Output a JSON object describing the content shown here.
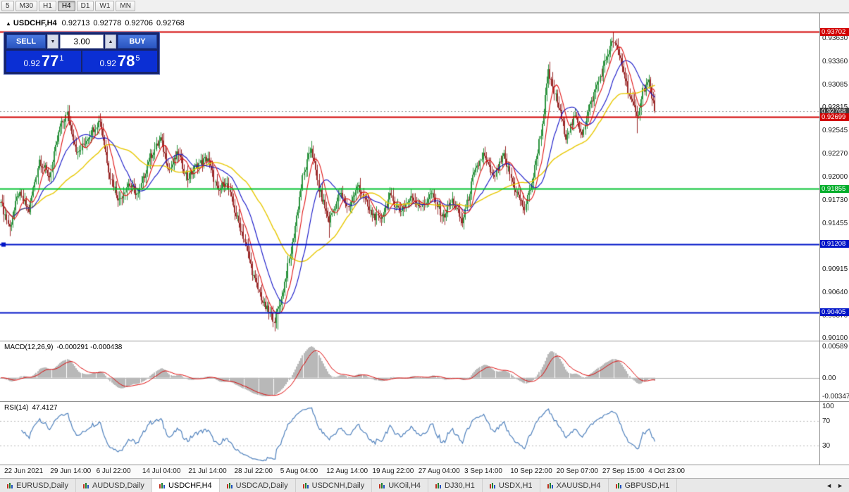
{
  "toolbar": {
    "periods": [
      {
        "label": "5",
        "active": false
      },
      {
        "label": "M30",
        "active": false
      },
      {
        "label": "H1",
        "active": false
      },
      {
        "label": "H4",
        "active": true
      },
      {
        "label": "D1",
        "active": false
      },
      {
        "label": "W1",
        "active": false
      },
      {
        "label": "MN",
        "active": false
      }
    ]
  },
  "chart": {
    "collapse_icon": "▲",
    "symbol_title": "USDCHF,H4",
    "ohlc": {
      "open": "0.92713",
      "high": "0.92778",
      "low": "0.92706",
      "close": "0.92768"
    },
    "price_scale": {
      "ticks": [
        "0.93630",
        "0.93360",
        "0.93085",
        "0.92815",
        "0.92545",
        "0.92270",
        "0.92000",
        "0.91730",
        "0.91455",
        "0.91185",
        "0.90915",
        "0.90640",
        "0.90370",
        "0.90100"
      ]
    },
    "hlines": [
      {
        "price": 0.93702,
        "tag": "0.93702",
        "color": "#d20000",
        "tag_bg": "#d20000",
        "width": 2,
        "style": "solid",
        "handle": false
      },
      {
        "price": 0.92768,
        "tag": "0.92768",
        "color": "#909090",
        "tag_bg": "#3d3d3d",
        "width": 1,
        "style": "dot",
        "handle": false
      },
      {
        "price": 0.92699,
        "tag": "0.92699",
        "color": "#d20000",
        "tag_bg": "#d20000",
        "width": 2,
        "style": "solid",
        "handle": false
      },
      {
        "price": 0.91855,
        "tag": "0.91855",
        "color": "#00c22e",
        "tag_bg": "#00ad29",
        "width": 2,
        "style": "solid",
        "handle": false
      },
      {
        "price": 0.91208,
        "tag": "0.91208",
        "color": "#0014c8",
        "tag_bg": "#0014c8",
        "width": 2,
        "style": "solid",
        "handle": true
      },
      {
        "price": 0.90405,
        "tag": "0.90405",
        "color": "#0014c8",
        "tag_bg": "#0014c8",
        "width": 2,
        "style": "solid",
        "handle": false
      }
    ],
    "time_labels": [
      "22 Jun 2021",
      "29 Jun 14:00",
      "6 Jul 22:00",
      "14 Jul 04:00",
      "21 Jul 14:00",
      "28 Jul 22:00",
      "5 Aug 04:00",
      "12 Aug 14:00",
      "19 Aug 22:00",
      "27 Aug 04:00",
      "3 Sep 14:00",
      "10 Sep 22:00",
      "20 Sep 07:00",
      "27 Sep 15:00",
      "4 Oct 23:00"
    ]
  },
  "trade_panel": {
    "sell_label": "SELL",
    "buy_label": "BUY",
    "volume": "3.00",
    "decrease_icon": "▼",
    "increase_icon": "▲",
    "bid": {
      "prefix": "0.92",
      "big": "77",
      "sup": "1"
    },
    "ask": {
      "prefix": "0.92",
      "big": "78",
      "sup": "5"
    }
  },
  "indicators": {
    "macd": {
      "label": "MACD(12,26,9)",
      "values": "-0.000291 -0.000438",
      "scale": [
        "0.00589",
        "0.00",
        "-0.00347"
      ]
    },
    "rsi": {
      "label": "RSI(14)",
      "value": "47.4127",
      "scale": [
        "100",
        "70",
        "30"
      ]
    }
  },
  "tabs": {
    "scroll_left": "◄",
    "scroll_right": "►",
    "items": [
      {
        "label": "EURUSD,Daily",
        "active": false
      },
      {
        "label": "AUDUSD,Daily",
        "active": false
      },
      {
        "label": "USDCHF,H4",
        "active": true
      },
      {
        "label": "USDCAD,Daily",
        "active": false
      },
      {
        "label": "USDCNH,Daily",
        "active": false
      },
      {
        "label": "UKOil,H4",
        "active": false
      },
      {
        "label": "DJ30,H1",
        "active": false
      },
      {
        "label": "USDX,H1",
        "active": false
      },
      {
        "label": "XAUUSD,H4",
        "active": false
      },
      {
        "label": "GBPUSD,H1",
        "active": false
      }
    ]
  },
  "colors": {
    "bull": "#2e9440",
    "bear": "#9b2b2b",
    "macd_hist": "#b8b8b8",
    "macd_signal": "#dd0000",
    "rsi_line": "#4f81bd",
    "level_dotted": "#b8b8b8",
    "quote_blue": "#0b2fd4",
    "panel_navy": "#16246b"
  },
  "chart_data": {
    "type": "candlestick",
    "symbol": "USDCHF",
    "timeframe": "H4",
    "current_ohlc": {
      "open": 0.92713,
      "high": 0.92778,
      "low": 0.92706,
      "close": 0.92768
    },
    "bid": 0.92771,
    "ask": 0.92785,
    "visible_range": {
      "price_top": 0.9392,
      "price_bottom": 0.9007,
      "time_start": "22 Jun 2021",
      "time_end": "4 Oct 23:00"
    },
    "candle_count": 443,
    "candle_spacing": 2.1,
    "close_anchors": [
      [
        0,
        0.917
      ],
      [
        6,
        0.914
      ],
      [
        12,
        0.918
      ],
      [
        19,
        0.916
      ],
      [
        26,
        0.922
      ],
      [
        33,
        0.92
      ],
      [
        40,
        0.9258
      ],
      [
        45,
        0.9274
      ],
      [
        52,
        0.9226
      ],
      [
        60,
        0.925
      ],
      [
        67,
        0.9267
      ],
      [
        74,
        0.92
      ],
      [
        80,
        0.9172
      ],
      [
        86,
        0.9192
      ],
      [
        93,
        0.9178
      ],
      [
        100,
        0.922
      ],
      [
        108,
        0.9244
      ],
      [
        114,
        0.9208
      ],
      [
        120,
        0.9228
      ],
      [
        126,
        0.9198
      ],
      [
        133,
        0.9214
      ],
      [
        140,
        0.9222
      ],
      [
        147,
        0.918
      ],
      [
        152,
        0.9196
      ],
      [
        158,
        0.916
      ],
      [
        164,
        0.913
      ],
      [
        171,
        0.9082
      ],
      [
        178,
        0.9048
      ],
      [
        185,
        0.9032
      ],
      [
        190,
        0.9058
      ],
      [
        197,
        0.912
      ],
      [
        204,
        0.9198
      ],
      [
        210,
        0.9235
      ],
      [
        215,
        0.9185
      ],
      [
        222,
        0.9148
      ],
      [
        229,
        0.918
      ],
      [
        235,
        0.9164
      ],
      [
        242,
        0.919
      ],
      [
        249,
        0.916
      ],
      [
        256,
        0.9148
      ],
      [
        263,
        0.9176
      ],
      [
        270,
        0.916
      ],
      [
        278,
        0.9176
      ],
      [
        285,
        0.9164
      ],
      [
        291,
        0.918
      ],
      [
        299,
        0.9152
      ],
      [
        305,
        0.9172
      ],
      [
        312,
        0.9146
      ],
      [
        319,
        0.9198
      ],
      [
        326,
        0.9226
      ],
      [
        333,
        0.9198
      ],
      [
        340,
        0.9224
      ],
      [
        347,
        0.9188
      ],
      [
        354,
        0.9162
      ],
      [
        360,
        0.92
      ],
      [
        366,
        0.9262
      ],
      [
        370,
        0.9322
      ],
      [
        376,
        0.9288
      ],
      [
        382,
        0.9248
      ],
      [
        388,
        0.927
      ],
      [
        393,
        0.9252
      ],
      [
        398,
        0.9282
      ],
      [
        404,
        0.9312
      ],
      [
        409,
        0.9338
      ],
      [
        414,
        0.936
      ],
      [
        419,
        0.9338
      ],
      [
        425,
        0.9296
      ],
      [
        430,
        0.9268
      ],
      [
        434,
        0.9302
      ],
      [
        438,
        0.9312
      ],
      [
        442,
        0.92768
      ]
    ],
    "extremes": [
      {
        "index": 6,
        "low": 0.913
      },
      {
        "index": 45,
        "high": 0.9278
      },
      {
        "index": 108,
        "high": 0.9252
      },
      {
        "index": 185,
        "low": 0.9018
      },
      {
        "index": 187,
        "low": 0.902
      },
      {
        "index": 210,
        "high": 0.9242
      },
      {
        "index": 222,
        "low": 0.9128
      },
      {
        "index": 370,
        "high": 0.9332
      },
      {
        "index": 414,
        "high": 0.93702
      },
      {
        "index": 430,
        "low": 0.9251
      }
    ],
    "ma": {
      "fast": {
        "period": 8,
        "color": "#e01414"
      },
      "mid": {
        "period": 20,
        "color": "#1414c8"
      },
      "slow": {
        "period": 50,
        "color": "#e8c800"
      }
    },
    "horizontal_levels": [
      0.93702,
      0.92699,
      0.91855,
      0.91208,
      0.90405
    ],
    "macd_current": [
      -0.000291,
      -0.000438
    ],
    "rsi_current": 47.4127
  }
}
